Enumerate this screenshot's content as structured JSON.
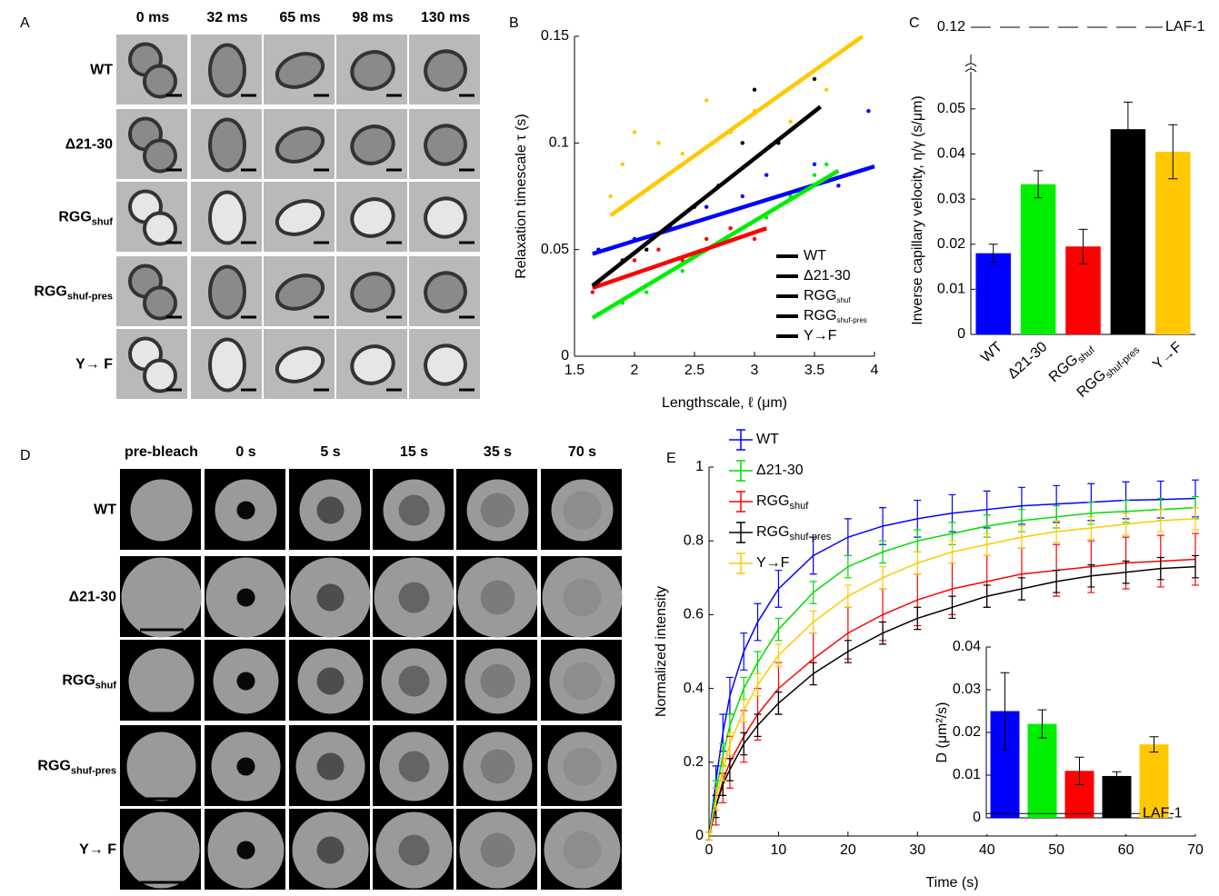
{
  "image_panels": [
    {
      "panel": "A",
      "columns": [
        "0 ms",
        "32 ms",
        "65 ms",
        "98 ms",
        "130 ms"
      ],
      "rows": [
        {
          "name": "WT"
        },
        {
          "name": "Δ21-30"
        },
        {
          "name": "RGG",
          "sub": "shuf"
        },
        {
          "name": "RGG",
          "sub": "shuf-pres"
        },
        {
          "name": "Y→ F"
        }
      ]
    },
    {
      "panel": "D",
      "columns": [
        "pre-bleach",
        "0 s",
        "5 s",
        "15 s",
        "35 s",
        "70 s"
      ],
      "rows": [
        {
          "name": "WT"
        },
        {
          "name": "Δ21-30"
        },
        {
          "name": "RGG",
          "sub": "shuf"
        },
        {
          "name": "RGG",
          "sub": "shuf-pres"
        },
        {
          "name": "Y→ F"
        }
      ]
    }
  ],
  "chart_data": [
    {
      "type": "scatter",
      "panel": "B",
      "xlabel": "Lengthscale, ℓ (μm)",
      "ylabel": "Relaxation timescale τ (s)",
      "xlim": [
        1.5,
        4
      ],
      "ylim": [
        0,
        0.15
      ],
      "xticks": [
        1.5,
        2,
        2.5,
        3,
        3.5,
        4
      ],
      "yticks": [
        0,
        0.05,
        0.1,
        0.15
      ],
      "legend": "lower right",
      "series": [
        {
          "name": "WT",
          "color": "#0000ff",
          "x": [
            1.7,
            2.0,
            2.3,
            2.6,
            2.9,
            3.1,
            3.3,
            3.5,
            3.7,
            3.95
          ],
          "values": [
            0.05,
            0.055,
            0.06,
            0.07,
            0.075,
            0.085,
            0.075,
            0.09,
            0.08,
            0.115
          ],
          "fit_x": [
            1.65,
            4
          ],
          "fit_values": [
            0.048,
            0.089
          ]
        },
        {
          "name": "Δ21-30",
          "color": "#00ee00",
          "x": [
            1.7,
            1.9,
            2.1,
            2.4,
            2.6,
            2.9,
            3.1,
            3.3,
            3.5,
            3.6
          ],
          "values": [
            0.02,
            0.025,
            0.03,
            0.04,
            0.05,
            0.06,
            0.065,
            0.075,
            0.085,
            0.09
          ],
          "fit_x": [
            1.65,
            3.7
          ],
          "fit_values": [
            0.018,
            0.087
          ]
        },
        {
          "name": "RGG",
          "name_sub": "shuf",
          "color": "#ff0000",
          "x": [
            1.65,
            1.8,
            2.0,
            2.2,
            2.4,
            2.6,
            2.8,
            3.0
          ],
          "values": [
            0.03,
            0.035,
            0.045,
            0.05,
            0.045,
            0.055,
            0.06,
            0.055
          ],
          "fit_x": [
            1.65,
            3.1
          ],
          "fit_values": [
            0.032,
            0.06
          ]
        },
        {
          "name": "RGG",
          "name_sub": "shuf-pres",
          "color": "#000000",
          "x": [
            1.7,
            1.9,
            2.1,
            2.3,
            2.5,
            2.7,
            2.9,
            3.0,
            3.2,
            3.5
          ],
          "values": [
            0.035,
            0.045,
            0.05,
            0.06,
            0.07,
            0.08,
            0.1,
            0.125,
            0.1,
            0.13
          ],
          "fit_x": [
            1.65,
            3.55
          ],
          "fit_values": [
            0.033,
            0.117
          ]
        },
        {
          "name": "Y→F",
          "color": "#ffc800",
          "x": [
            1.8,
            1.9,
            2.0,
            2.2,
            2.4,
            2.6,
            2.8,
            3.0,
            3.3,
            3.6
          ],
          "values": [
            0.075,
            0.09,
            0.105,
            0.1,
            0.095,
            0.12,
            0.105,
            0.115,
            0.11,
            0.125
          ],
          "fit_x": [
            1.8,
            3.9
          ],
          "fit_values": [
            0.066,
            0.15
          ]
        }
      ]
    },
    {
      "type": "bar",
      "panel": "C",
      "ylabel": "Inverse capillary velocity, η/γ (s/μm)",
      "categories": [
        "WT",
        "Δ21-30",
        "RGG",
        "RGG",
        "Y→F"
      ],
      "category_subs": [
        null,
        null,
        "shuf",
        "shuf-pres",
        null
      ],
      "values": [
        0.018,
        0.0333,
        0.0195,
        0.0455,
        0.0405
      ],
      "errors": [
        0.002,
        0.003,
        0.0038,
        0.006,
        0.006
      ],
      "colors": [
        "#0000ff",
        "#00ee00",
        "#ff0000",
        "#000000",
        "#ffc800"
      ],
      "ylim": [
        0,
        0.055
      ],
      "yticks": [
        0,
        0.01,
        0.02,
        0.03,
        0.04,
        0.05
      ],
      "reference": {
        "value": 0.12,
        "label": "LAF-1"
      }
    },
    {
      "type": "line",
      "panel": "E",
      "xlabel": "Time (s)",
      "ylabel": "Normalized intensity",
      "xlim": [
        0,
        70
      ],
      "ylim": [
        0,
        1
      ],
      "xticks": [
        0,
        10,
        20,
        30,
        40,
        50,
        60,
        70
      ],
      "yticks": [
        0,
        0.2,
        0.4,
        0.6,
        0.8,
        1
      ],
      "legend": "upper left",
      "x": [
        0,
        1,
        2,
        3,
        5,
        7,
        10,
        15,
        20,
        25,
        30,
        35,
        40,
        45,
        50,
        55,
        60,
        65,
        70
      ],
      "series": [
        {
          "name": "WT",
          "color": "#0000ff",
          "values": [
            0,
            0.15,
            0.28,
            0.38,
            0.5,
            0.58,
            0.67,
            0.76,
            0.81,
            0.84,
            0.86,
            0.875,
            0.885,
            0.895,
            0.9,
            0.905,
            0.91,
            0.912,
            0.915
          ],
          "errors": [
            0.01,
            0.04,
            0.05,
            0.05,
            0.05,
            0.05,
            0.05,
            0.05,
            0.05,
            0.05,
            0.05,
            0.05,
            0.05,
            0.05,
            0.05,
            0.05,
            0.05,
            0.05,
            0.05
          ]
        },
        {
          "name": "Δ21-30",
          "color": "#00dd00",
          "values": [
            0,
            0.12,
            0.22,
            0.3,
            0.4,
            0.47,
            0.56,
            0.66,
            0.73,
            0.77,
            0.8,
            0.82,
            0.84,
            0.855,
            0.865,
            0.875,
            0.88,
            0.885,
            0.89
          ],
          "errors": [
            0.01,
            0.03,
            0.03,
            0.03,
            0.03,
            0.03,
            0.03,
            0.03,
            0.03,
            0.03,
            0.03,
            0.03,
            0.03,
            0.03,
            0.03,
            0.03,
            0.03,
            0.03,
            0.03
          ]
        },
        {
          "name": "RGG",
          "name_sub": "shuf",
          "color": "#ff0000",
          "values": [
            0,
            0.08,
            0.15,
            0.2,
            0.27,
            0.33,
            0.4,
            0.48,
            0.55,
            0.6,
            0.64,
            0.67,
            0.69,
            0.71,
            0.72,
            0.73,
            0.74,
            0.745,
            0.75
          ],
          "errors": [
            0.01,
            0.05,
            0.06,
            0.07,
            0.07,
            0.07,
            0.07,
            0.07,
            0.07,
            0.07,
            0.07,
            0.07,
            0.07,
            0.07,
            0.07,
            0.07,
            0.07,
            0.07,
            0.07
          ]
        },
        {
          "name": "RGG",
          "name_sub": "shuf-pres",
          "color": "#000000",
          "values": [
            0,
            0.08,
            0.14,
            0.18,
            0.25,
            0.3,
            0.36,
            0.44,
            0.5,
            0.55,
            0.59,
            0.62,
            0.65,
            0.67,
            0.69,
            0.705,
            0.715,
            0.725,
            0.73
          ],
          "errors": [
            0.01,
            0.03,
            0.03,
            0.03,
            0.03,
            0.03,
            0.03,
            0.03,
            0.03,
            0.03,
            0.03,
            0.03,
            0.03,
            0.03,
            0.03,
            0.03,
            0.03,
            0.03,
            0.03
          ]
        },
        {
          "name": "Y→F",
          "color": "#ffc800",
          "values": [
            0,
            0.1,
            0.18,
            0.25,
            0.34,
            0.41,
            0.49,
            0.58,
            0.65,
            0.7,
            0.74,
            0.77,
            0.79,
            0.81,
            0.825,
            0.835,
            0.845,
            0.855,
            0.86
          ],
          "errors": [
            0.01,
            0.03,
            0.03,
            0.03,
            0.03,
            0.03,
            0.03,
            0.03,
            0.03,
            0.03,
            0.03,
            0.03,
            0.03,
            0.03,
            0.03,
            0.03,
            0.03,
            0.03,
            0.03
          ]
        }
      ]
    },
    {
      "type": "bar",
      "ylabel": "D (μm²/s)",
      "values": [
        0.025,
        0.022,
        0.011,
        0.0098,
        0.0172
      ],
      "errors": [
        0.009,
        0.0033,
        0.0032,
        0.001,
        0.0018
      ],
      "colors": [
        "#0000ff",
        "#00ee00",
        "#ff0000",
        "#000000",
        "#ffc800"
      ],
      "ylim": [
        0,
        0.04
      ],
      "yticks": [
        0,
        0.01,
        0.02,
        0.03,
        0.04
      ],
      "reference": {
        "value": 0.001,
        "label": "LAF-1"
      }
    }
  ]
}
